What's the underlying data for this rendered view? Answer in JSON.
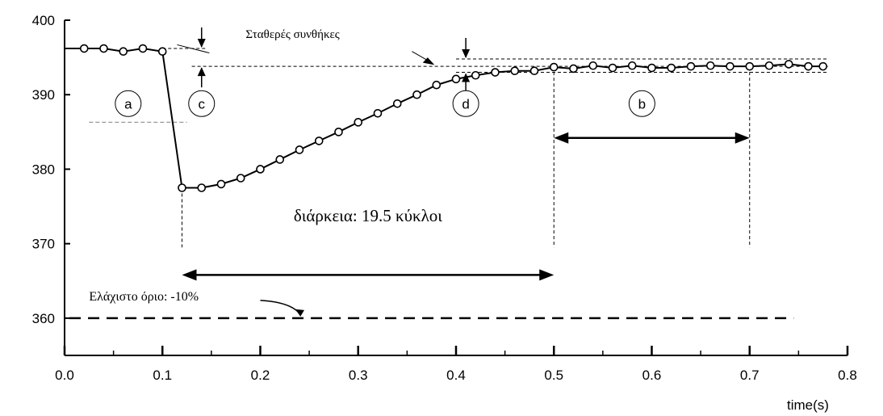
{
  "chart_data": {
    "type": "line",
    "xlabel": "time(s)",
    "ylabel": "",
    "xlim": [
      0.0,
      0.8
    ],
    "ylim": [
      355,
      400
    ],
    "x_ticks": [
      "0.0",
      "0.1",
      "0.2",
      "0.3",
      "0.4",
      "0.5",
      "0.6",
      "0.7",
      "0.8"
    ],
    "y_ticks": [
      "400",
      "390",
      "380",
      "370",
      "360"
    ],
    "series": [
      {
        "x": [
          0.0,
          0.02,
          0.04,
          0.06,
          0.08,
          0.1,
          0.12,
          0.14,
          0.16,
          0.18,
          0.2,
          0.22,
          0.24,
          0.26,
          0.28,
          0.3,
          0.32,
          0.34,
          0.36,
          0.38,
          0.4,
          0.42,
          0.44,
          0.46,
          0.48,
          0.5,
          0.52,
          0.54,
          0.56,
          0.58,
          0.6,
          0.62,
          0.64,
          0.66,
          0.68,
          0.7,
          0.72,
          0.74,
          0.76,
          0.775
        ],
        "y": [
          396.2,
          396.2,
          396.2,
          395.8,
          396.2,
          395.8,
          377.5,
          377.5,
          378.0,
          378.8,
          380.0,
          381.3,
          382.6,
          383.8,
          385.0,
          386.3,
          387.5,
          388.8,
          390.0,
          391.3,
          392.1,
          392.6,
          393.0,
          393.2,
          393.2,
          393.7,
          393.5,
          393.9,
          393.6,
          393.9,
          393.6,
          393.6,
          393.8,
          393.9,
          393.8,
          393.8,
          393.9,
          394.1,
          393.8,
          393.8
        ],
        "marked_from_index": 1
      }
    ],
    "min_limit": {
      "y": 360,
      "label": "Ελάχιστο όριο: -10%"
    },
    "annotations": {
      "stable": "Σταθερές συνθήκες",
      "duration": "διάρκεια: 19.5 κύκλοι",
      "a": "a",
      "b": "b",
      "c": "c",
      "d": "d"
    },
    "reference_levels": {
      "pre_fault": 396.2,
      "post_fault_upper": 394.8,
      "post_fault_mid": 393.8,
      "post_fault_lower": 393.0,
      "a_level": 386.3
    },
    "duration_span": [
      0.12,
      0.5
    ],
    "b_span": [
      0.5,
      0.7
    ],
    "legend": "none",
    "grid": false
  }
}
